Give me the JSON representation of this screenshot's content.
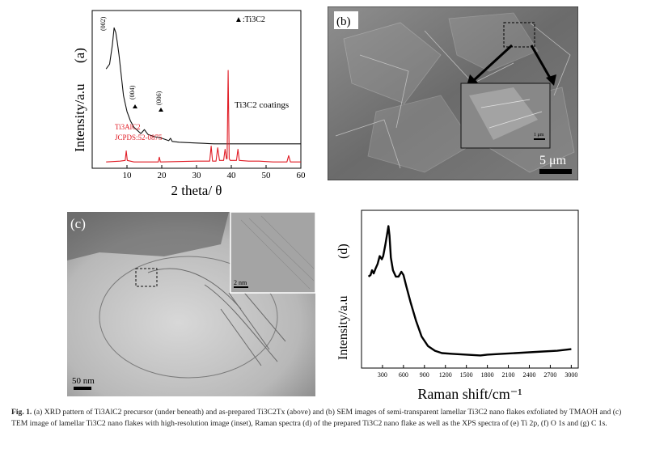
{
  "figure": {
    "caption_label": "Fig. 1.",
    "caption_text": "(a) XRD pattern of Ti3AlC2 precursor (under beneath) and as-prepared Ti3C2Tx (above) and (b) SEM images of semi-transparent lamellar Ti3C2 nano flakes exfoliated by TMAOH and (c) TEM image of lamellar Ti3C2 nano flakes with high-resolution image (inset), Raman spectra (d) of the prepared Ti3C2 nano flake as well as the XPS spectra of (e) Ti 2p, (f) O 1s and (g) C 1s."
  },
  "panels": {
    "sem": {
      "label": "(b)",
      "scale_main": "5 μm",
      "scale_inset": "1 μm"
    },
    "tem": {
      "label": "(c)",
      "scale_main": "50 nm",
      "scale_inset": "2 nm"
    }
  },
  "chart_data": [
    {
      "type": "line",
      "panel_label": "(a)",
      "xlabel": "2 theta/ θ",
      "ylabel": "Intensity/a.u",
      "xlim": [
        0,
        60
      ],
      "xticks": [
        10,
        20,
        30,
        40,
        50,
        60
      ],
      "legend": "▲:Ti3C2",
      "annotations": [
        "(002)",
        "(004)",
        "(006)",
        "Ti3C2 coatings",
        "Ti3AlC2",
        "JCPDS:52-0875"
      ],
      "colors": {
        "ti3c2": "#111111",
        "ti3alc2": "#e01b24"
      },
      "series": [
        {
          "name": "Ti3C2 coatings",
          "x": [
            4,
            5,
            5.8,
            6.3,
            6.8,
            7.2,
            7.7,
            8.3,
            9,
            10,
            11,
            12,
            14,
            15,
            16,
            18,
            20,
            22,
            22.5,
            23,
            25,
            30,
            35,
            40,
            45,
            50,
            55,
            60
          ],
          "y": [
            0.63,
            0.66,
            0.78,
            0.89,
            0.86,
            0.8,
            0.72,
            0.6,
            0.46,
            0.36,
            0.3,
            0.26,
            0.22,
            0.245,
            0.215,
            0.2,
            0.19,
            0.175,
            0.19,
            0.17,
            0.165,
            0.16,
            0.155,
            0.155,
            0.155,
            0.155,
            0.155,
            0.155
          ]
        },
        {
          "name": "Ti3AlC2",
          "x": [
            4,
            8,
            9.5,
            9.8,
            10.1,
            12,
            19,
            19.3,
            19.6,
            30,
            33.8,
            34.2,
            34.6,
            35.6,
            36.1,
            36.6,
            37.8,
            38.2,
            38.6,
            38.8,
            39.1,
            39.4,
            39.7,
            41.5,
            41.9,
            42.3,
            45,
            48,
            52,
            56,
            56.5,
            57,
            60
          ],
          "y": [
            0.04,
            0.045,
            0.05,
            0.11,
            0.05,
            0.04,
            0.04,
            0.07,
            0.04,
            0.045,
            0.045,
            0.14,
            0.045,
            0.045,
            0.13,
            0.05,
            0.05,
            0.12,
            0.06,
            0.06,
            0.62,
            0.06,
            0.05,
            0.05,
            0.12,
            0.05,
            0.045,
            0.045,
            0.04,
            0.04,
            0.08,
            0.04,
            0.04
          ]
        }
      ]
    },
    {
      "type": "line",
      "panel_label": "(d)",
      "xlabel": "Raman shift/cm⁻¹",
      "ylabel": "Intensity/a.u",
      "xlim": [
        0,
        3100
      ],
      "xticks": [
        300,
        600,
        900,
        1200,
        1500,
        1800,
        2100,
        2400,
        2700,
        3000
      ],
      "series": [
        {
          "x": [
            100,
            130,
            150,
            175,
            200,
            230,
            260,
            290,
            310,
            340,
            370,
            385,
            400,
            420,
            450,
            490,
            530,
            570,
            600,
            640,
            700,
            780,
            860,
            950,
            1050,
            1150,
            1300,
            1500,
            1700,
            1800,
            2000,
            2200,
            2400,
            2600,
            2800,
            3000
          ],
          "y": [
            0.58,
            0.59,
            0.62,
            0.6,
            0.63,
            0.66,
            0.71,
            0.69,
            0.71,
            0.78,
            0.86,
            0.9,
            0.84,
            0.7,
            0.62,
            0.58,
            0.58,
            0.61,
            0.59,
            0.52,
            0.42,
            0.3,
            0.2,
            0.14,
            0.11,
            0.095,
            0.09,
            0.085,
            0.08,
            0.085,
            0.09,
            0.095,
            0.1,
            0.105,
            0.11,
            0.12
          ]
        }
      ]
    }
  ]
}
